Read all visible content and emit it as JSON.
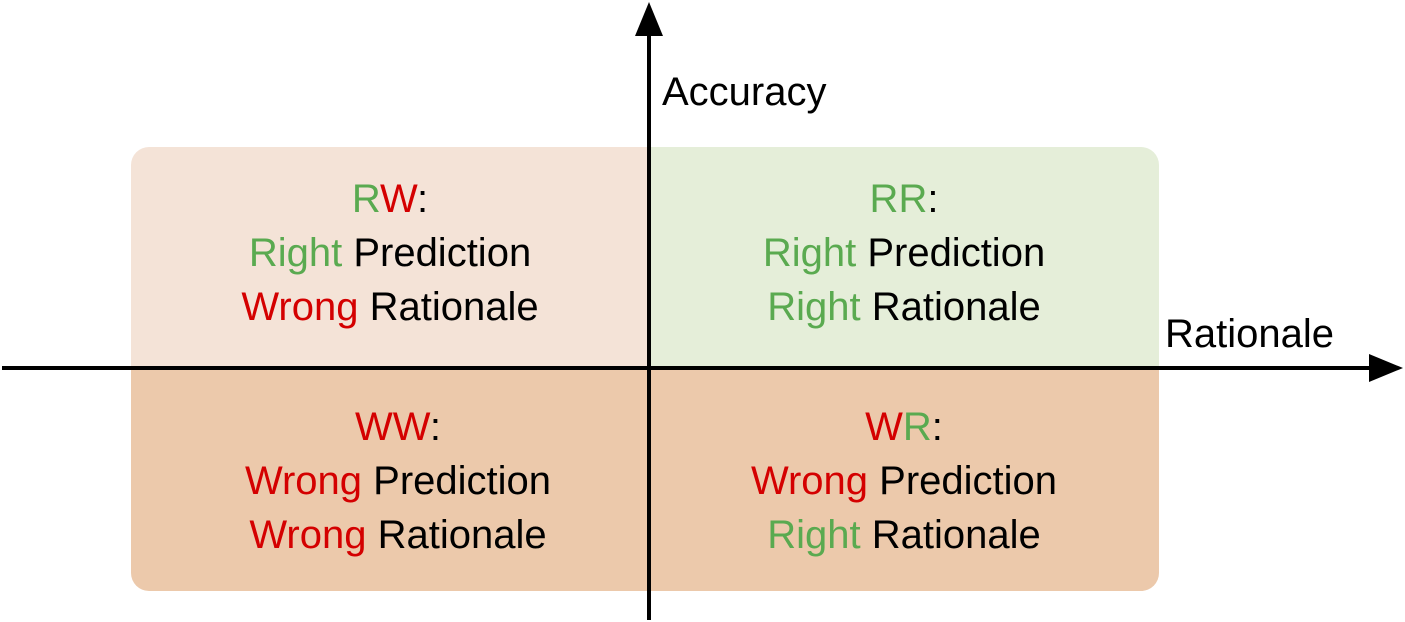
{
  "colors": {
    "right": "#5aaa50",
    "wrong": "#d40000",
    "text": "#000000",
    "tl_fill": "#f4e3d7",
    "tr_fill": "#e5eed9",
    "bl_fill": "#ecc9ab",
    "br_fill": "#ecc9ab",
    "axis": "#000000"
  },
  "axes": {
    "y_label": "Accuracy",
    "x_label": "Rationale"
  },
  "quadrants": {
    "top_left": {
      "code_first": "R",
      "code_second": "W",
      "colon": ":",
      "line1_word": "Right",
      "line1_rest": " Prediction",
      "line2_word": "Wrong",
      "line2_rest": " Rationale"
    },
    "top_right": {
      "code_first": "R",
      "code_second": "R",
      "colon": ":",
      "line1_word": "Right",
      "line1_rest": " Prediction",
      "line2_word": "Right",
      "line2_rest": " Rationale"
    },
    "bottom_left": {
      "code_first": "W",
      "code_second": "W",
      "colon": ":",
      "line1_word": "Wrong",
      "line1_rest": " Prediction",
      "line2_word": "Wrong",
      "line2_rest": " Rationale"
    },
    "bottom_right": {
      "code_first": "W",
      "code_second": "R",
      "colon": ":",
      "line1_word": "Wrong",
      "line1_rest": " Prediction",
      "line2_word": "Right",
      "line2_rest": " Rationale"
    }
  }
}
